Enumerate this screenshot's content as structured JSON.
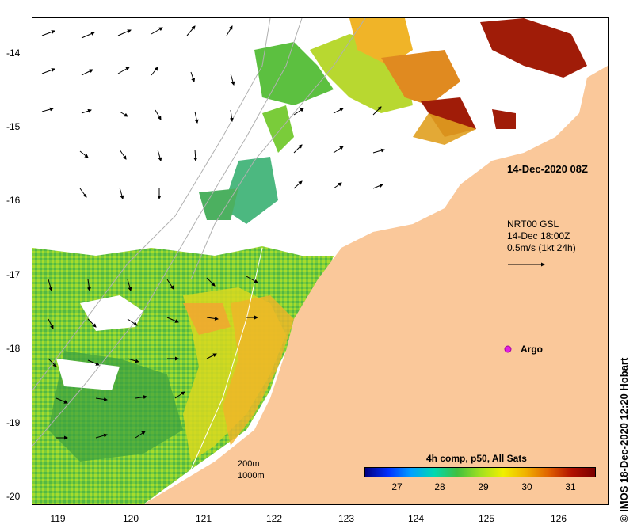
{
  "map": {
    "y_ticks": [
      "-14",
      "-15",
      "-16",
      "-17",
      "-18",
      "-19",
      "-20"
    ],
    "x_ticks": [
      "119",
      "120",
      "121",
      "122",
      "123",
      "124",
      "125",
      "126"
    ],
    "timestamp_label": "14-Dec-2020 08Z",
    "current_info": [
      "NRT00 GSL",
      "14-Dec 18:00Z",
      "0.5m/s (1kt 24h)"
    ],
    "argo_label": "Argo",
    "isobath_labels": [
      "200m",
      "1000m"
    ],
    "colorbar": {
      "title": "4h comp, p50, All Sats",
      "ticks": [
        "27",
        "28",
        "29",
        "30",
        "31"
      ]
    },
    "credit": "© IMOS 18-Dec-2020 12:20 Hobart",
    "colors": {
      "land": "#fac89a",
      "argo": "#e020e0"
    }
  }
}
